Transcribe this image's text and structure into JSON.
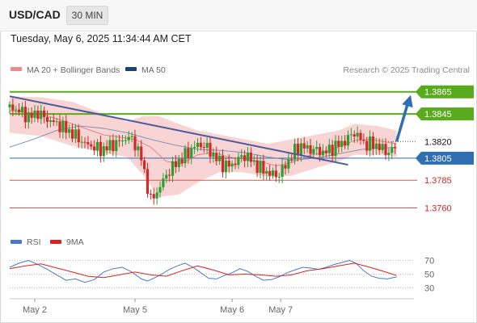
{
  "header": {
    "symbol": "USD/CAD",
    "timeframe": "30 MIN",
    "datetime": "Tuesday, May 6, 2025 11:34:44 AM CET"
  },
  "legend": {
    "ma20_label": "MA 20 + Bollinger Bands",
    "ma50_label": "MA 50",
    "credit": "Research © 2025 Trading Central"
  },
  "rsi_legend": {
    "rsi_label": "RSI",
    "ma9_label": "9MA"
  },
  "colors": {
    "bullish": "#2ca02c",
    "bearish": "#d62728",
    "accent": "#2f6fb0",
    "trendline": "#4a5a9a",
    "bollinger": "#f5c6c6",
    "resistance": "#5aaa1e",
    "support": "#e05050"
  },
  "chart_data": [
    {
      "type": "candlestick",
      "title": "USD/CAD 30 MIN",
      "x_tick_labels": [
        "May 2",
        "May 5",
        "May 6",
        "May 7"
      ],
      "ylim": [
        1.3745,
        1.3875
      ],
      "current_price": "1.3820",
      "levels": [
        {
          "value": 1.3865,
          "label": "1.3865",
          "kind": "resistance"
        },
        {
          "value": 1.3845,
          "label": "1.3845",
          "kind": "resistance"
        },
        {
          "value": 1.382,
          "label": "1.3820",
          "kind": "last"
        },
        {
          "value": 1.3805,
          "label": "1.3805",
          "kind": "pivot"
        },
        {
          "value": 1.3785,
          "label": "1.3785",
          "kind": "support"
        },
        {
          "value": 1.376,
          "label": "1.3760",
          "kind": "support"
        }
      ],
      "close_path": [
        [
          0,
          1.3851
        ],
        [
          6,
          1.3848
        ],
        [
          12,
          1.3842
        ],
        [
          18,
          1.3846
        ],
        [
          24,
          1.384
        ],
        [
          30,
          1.3836
        ],
        [
          36,
          1.3831
        ],
        [
          42,
          1.3825
        ],
        [
          48,
          1.3818
        ],
        [
          54,
          1.3815
        ],
        [
          58,
          1.3812
        ],
        [
          64,
          1.3816
        ],
        [
          70,
          1.382
        ],
        [
          76,
          1.3824
        ],
        [
          80,
          1.3818
        ],
        [
          84,
          1.3805
        ],
        [
          87,
          1.3785
        ],
        [
          90,
          1.3767
        ],
        [
          93,
          1.3772
        ],
        [
          97,
          1.3782
        ],
        [
          101,
          1.3792
        ],
        [
          106,
          1.38
        ],
        [
          111,
          1.3806
        ],
        [
          116,
          1.3813
        ],
        [
          121,
          1.3818
        ],
        [
          126,
          1.3814
        ],
        [
          131,
          1.3806
        ],
        [
          136,
          1.3799
        ],
        [
          141,
          1.3798
        ],
        [
          146,
          1.3804
        ],
        [
          151,
          1.3808
        ],
        [
          156,
          1.38
        ],
        [
          161,
          1.3795
        ],
        [
          166,
          1.3791
        ],
        [
          171,
          1.3789
        ],
        [
          176,
          1.3798
        ],
        [
          181,
          1.381
        ],
        [
          186,
          1.3816
        ],
        [
          191,
          1.3813
        ],
        [
          196,
          1.3812
        ],
        [
          201,
          1.381
        ],
        [
          206,
          1.3814
        ],
        [
          211,
          1.3818
        ],
        [
          216,
          1.3822
        ],
        [
          219,
          1.3829
        ],
        [
          223,
          1.3824
        ],
        [
          227,
          1.3817
        ],
        [
          231,
          1.3818
        ],
        [
          235,
          1.3816
        ],
        [
          239,
          1.3812
        ],
        [
          243,
          1.381
        ],
        [
          247,
          1.3817
        ]
      ],
      "trendline": [
        [
          0,
          1.3861
        ],
        [
          216,
          1.3799
        ]
      ],
      "projection_arrow": [
        [
          247,
          1.382
        ],
        [
          256,
          1.3862
        ]
      ],
      "ma20": [
        [
          0,
          1.3848
        ],
        [
          20,
          1.3845
        ],
        [
          40,
          1.3836
        ],
        [
          60,
          1.3826
        ],
        [
          80,
          1.3822
        ],
        [
          90,
          1.3815
        ],
        [
          100,
          1.3802
        ],
        [
          110,
          1.38
        ],
        [
          120,
          1.3808
        ],
        [
          130,
          1.381
        ],
        [
          140,
          1.3806
        ],
        [
          150,
          1.3804
        ],
        [
          160,
          1.3802
        ],
        [
          170,
          1.3798
        ],
        [
          180,
          1.3801
        ],
        [
          190,
          1.3807
        ],
        [
          200,
          1.381
        ],
        [
          210,
          1.3815
        ],
        [
          220,
          1.3821
        ],
        [
          230,
          1.3822
        ],
        [
          247,
          1.3818
        ]
      ],
      "ma50": [
        [
          0,
          1.3815
        ],
        [
          15,
          1.3822
        ],
        [
          30,
          1.383
        ],
        [
          45,
          1.3834
        ],
        [
          60,
          1.3832
        ],
        [
          75,
          1.3828
        ],
        [
          90,
          1.3822
        ],
        [
          105,
          1.3817
        ],
        [
          120,
          1.3813
        ],
        [
          135,
          1.3812
        ],
        [
          150,
          1.381
        ],
        [
          165,
          1.3806
        ],
        [
          180,
          1.3803
        ],
        [
          195,
          1.3805
        ],
        [
          210,
          1.3809
        ],
        [
          225,
          1.3813
        ],
        [
          247,
          1.3815
        ]
      ],
      "bollinger_upper": [
        [
          0,
          1.3861
        ],
        [
          20,
          1.386
        ],
        [
          40,
          1.3856
        ],
        [
          60,
          1.3845
        ],
        [
          75,
          1.3838
        ],
        [
          85,
          1.3843
        ],
        [
          95,
          1.3843
        ],
        [
          108,
          1.3836
        ],
        [
          120,
          1.383
        ],
        [
          135,
          1.3826
        ],
        [
          150,
          1.3822
        ],
        [
          165,
          1.3818
        ],
        [
          180,
          1.3822
        ],
        [
          195,
          1.3826
        ],
        [
          210,
          1.383
        ],
        [
          220,
          1.3836
        ],
        [
          235,
          1.3834
        ],
        [
          247,
          1.383
        ]
      ],
      "bollinger_lower": [
        [
          0,
          1.3828
        ],
        [
          20,
          1.3825
        ],
        [
          40,
          1.3816
        ],
        [
          60,
          1.381
        ],
        [
          75,
          1.3806
        ],
        [
          85,
          1.379
        ],
        [
          95,
          1.377
        ],
        [
          108,
          1.3772
        ],
        [
          120,
          1.3783
        ],
        [
          135,
          1.3793
        ],
        [
          150,
          1.3792
        ],
        [
          165,
          1.3788
        ],
        [
          180,
          1.3789
        ],
        [
          195,
          1.3796
        ],
        [
          210,
          1.3802
        ],
        [
          220,
          1.3808
        ],
        [
          235,
          1.3808
        ],
        [
          247,
          1.3806
        ]
      ]
    },
    {
      "type": "line",
      "title": "RSI",
      "y_tick_labels": [
        "70",
        "50",
        "30"
      ],
      "ylim": [
        20,
        80
      ],
      "series": [
        {
          "name": "RSI",
          "values": [
            [
              0,
              60
            ],
            [
              6,
              66
            ],
            [
              12,
              70
            ],
            [
              18,
              64
            ],
            [
              24,
              57
            ],
            [
              30,
              49
            ],
            [
              36,
              41
            ],
            [
              42,
              43
            ],
            [
              48,
              38
            ],
            [
              54,
              42
            ],
            [
              60,
              53
            ],
            [
              66,
              58
            ],
            [
              72,
              60
            ],
            [
              78,
              53
            ],
            [
              84,
              43
            ],
            [
              88,
              40
            ],
            [
              92,
              44
            ],
            [
              97,
              50
            ],
            [
              102,
              57
            ],
            [
              107,
              62
            ],
            [
              112,
              66
            ],
            [
              117,
              60
            ],
            [
              122,
              52
            ],
            [
              127,
              44
            ],
            [
              132,
              43
            ],
            [
              137,
              48
            ],
            [
              142,
              52
            ],
            [
              147,
              58
            ],
            [
              152,
              54
            ],
            [
              157,
              47
            ],
            [
              162,
              41
            ],
            [
              167,
              42
            ],
            [
              172,
              46
            ],
            [
              177,
              52
            ],
            [
              182,
              56
            ],
            [
              187,
              60
            ],
            [
              192,
              59
            ],
            [
              197,
              57
            ],
            [
              202,
              60
            ],
            [
              207,
              64
            ],
            [
              212,
              67
            ],
            [
              217,
              70
            ],
            [
              221,
              66
            ],
            [
              226,
              55
            ],
            [
              231,
              47
            ],
            [
              236,
              44
            ],
            [
              241,
              43
            ],
            [
              247,
              46
            ]
          ]
        },
        {
          "name": "9MA",
          "values": [
            [
              0,
              58
            ],
            [
              10,
              62
            ],
            [
              20,
              65
            ],
            [
              30,
              59
            ],
            [
              40,
              53
            ],
            [
              50,
              47
            ],
            [
              60,
              45
            ],
            [
              70,
              49
            ],
            [
              80,
              53
            ],
            [
              90,
              49
            ],
            [
              100,
              47
            ],
            [
              110,
              55
            ],
            [
              120,
              62
            ],
            [
              130,
              56
            ],
            [
              140,
              49
            ],
            [
              150,
              50
            ],
            [
              160,
              49
            ],
            [
              170,
              47
            ],
            [
              180,
              49
            ],
            [
              190,
              55
            ],
            [
              200,
              58
            ],
            [
              210,
              62
            ],
            [
              220,
              66
            ],
            [
              230,
              60
            ],
            [
              240,
              53
            ],
            [
              247,
              48
            ]
          ]
        }
      ]
    }
  ]
}
